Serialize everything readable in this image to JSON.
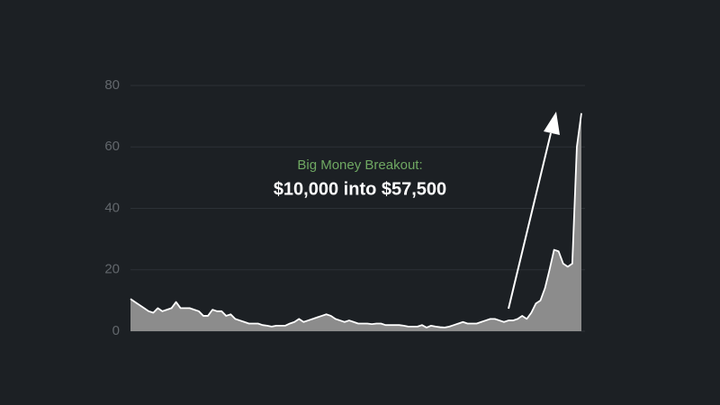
{
  "chart_data": {
    "type": "area",
    "annotation_title": "Big Money Breakout:",
    "annotation_text": "$10,000 into $57,500",
    "values": [
      10.5,
      9.5,
      8.5,
      7.5,
      6.5,
      6,
      7.5,
      6.5,
      7,
      7.5,
      9.5,
      7.5,
      7.5,
      7.5,
      7,
      6.5,
      5,
      5,
      7,
      6.5,
      6.5,
      5,
      5.5,
      4,
      3.5,
      3,
      2.5,
      2.5,
      2.5,
      2,
      1.8,
      1.5,
      1.8,
      1.8,
      1.8,
      2.5,
      3,
      4,
      3,
      3.5,
      4,
      4.5,
      5,
      5.5,
      5,
      4,
      3.5,
      3,
      3.5,
      3,
      2.5,
      2.5,
      2.5,
      2.3,
      2.5,
      2.5,
      2,
      2,
      2,
      2,
      1.8,
      1.5,
      1.5,
      1.5,
      2,
      1.2,
      1.8,
      1.5,
      1.3,
      1.2,
      1.5,
      2,
      2.5,
      3,
      2.5,
      2.5,
      2.5,
      3,
      3.5,
      4,
      4,
      3.5,
      3,
      3.5,
      3.5,
      4,
      5,
      4,
      6,
      9,
      10,
      14,
      20,
      26.5,
      26,
      22,
      21,
      22,
      60,
      71
    ],
    "color": "#8c8c8c",
    "line_color": "#ffffff",
    "ylim": [
      0,
      80
    ],
    "yticks": [
      0,
      20,
      40,
      60,
      80
    ],
    "grid": true
  }
}
